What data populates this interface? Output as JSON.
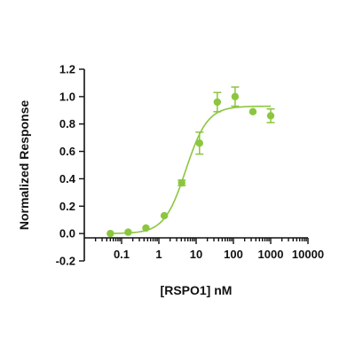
{
  "chart_data": {
    "type": "scatter",
    "xlabel": "[RSPO1] nM",
    "ylabel": "Normalized Response",
    "x_scale": "log",
    "xlim": [
      0.02,
      10000
    ],
    "ylim": [
      -0.2,
      1.2
    ],
    "x_tick_labels": [
      "0.1",
      "1",
      "10",
      "100",
      "1000",
      "10000"
    ],
    "x_tick_values": [
      0.1,
      1,
      10,
      100,
      1000,
      10000
    ],
    "y_tick_labels": [
      "-0.2",
      "0.0",
      "0.2",
      "0.4",
      "0.6",
      "0.8",
      "1.0",
      "1.2"
    ],
    "y_tick_values": [
      -0.2,
      0,
      0.2,
      0.4,
      0.6,
      0.8,
      1.0,
      1.2
    ],
    "grid": false,
    "legend": "none",
    "series": [
      {
        "color": "#8cc63f",
        "points": [
          {
            "x": 0.05,
            "y": 0.0,
            "err": 0
          },
          {
            "x": 0.15,
            "y": 0.01,
            "err": 0
          },
          {
            "x": 0.45,
            "y": 0.04,
            "err": 0
          },
          {
            "x": 1.4,
            "y": 0.13,
            "err": 0
          },
          {
            "x": 4.1,
            "y": 0.37,
            "err": 0.02
          },
          {
            "x": 12.3,
            "y": 0.66,
            "err": 0.08
          },
          {
            "x": 37,
            "y": 0.96,
            "err": 0.07
          },
          {
            "x": 111,
            "y": 1.0,
            "err": 0.07
          },
          {
            "x": 333,
            "y": 0.89,
            "err": 0
          },
          {
            "x": 1000,
            "y": 0.86,
            "err": 0.05
          }
        ],
        "fit": {
          "bottom": 0.0,
          "top": 0.93,
          "ec50": 5.3,
          "hill": 1.5,
          "x_range": [
            0.05,
            1000
          ]
        }
      }
    ]
  }
}
